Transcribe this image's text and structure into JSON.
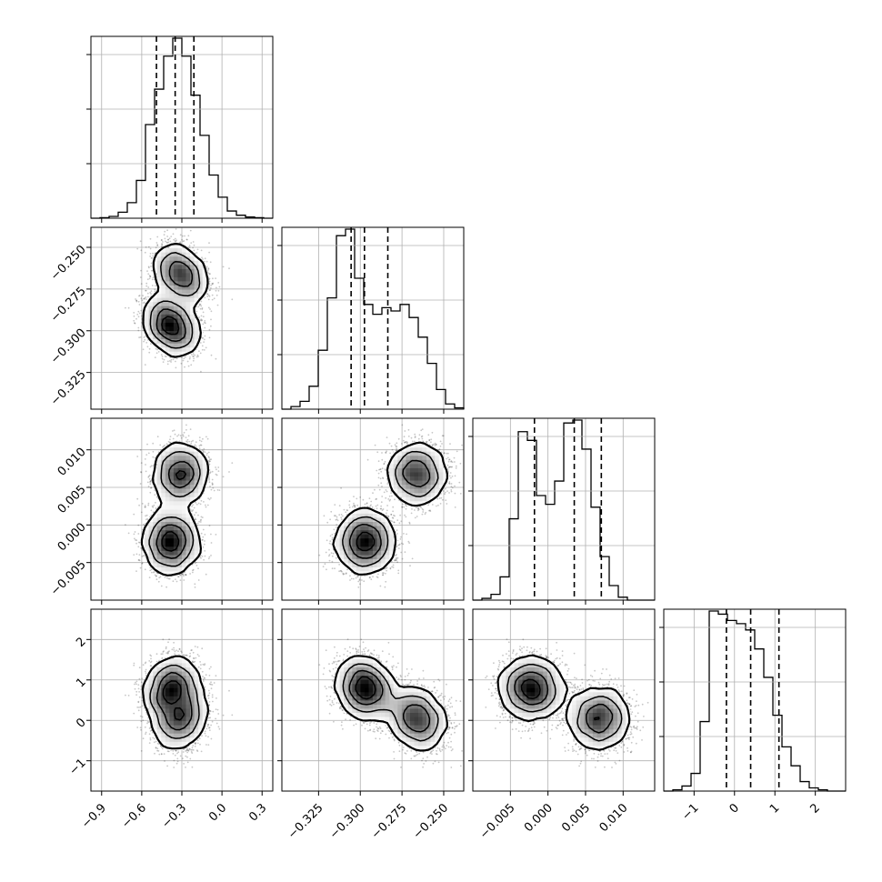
{
  "chart_data": {
    "type": "corner",
    "title": "",
    "parameters": [
      {
        "label": "",
        "range": [
          -0.98,
          0.38
        ],
        "ticks": [
          "-0.9",
          "-0.6",
          "-0.3",
          "0.0",
          "0.3"
        ],
        "tick_values": [
          -0.9,
          -0.6,
          -0.3,
          0.0,
          0.3
        ],
        "quantiles": [
          -0.49,
          -0.35,
          -0.21
        ]
      },
      {
        "label": "",
        "range": [
          -0.347,
          -0.238
        ],
        "ticks": [
          "-0.325",
          "-0.300",
          "-0.275",
          "-0.250"
        ],
        "tick_values": [
          -0.325,
          -0.3,
          -0.275,
          -0.25
        ],
        "quantiles": [
          -0.3055,
          -0.2975,
          -0.2835
        ]
      },
      {
        "label": "",
        "range": [
          -0.01,
          0.0142
        ],
        "ticks": [
          "-0.005",
          "0.000",
          "0.005",
          "0.010"
        ],
        "tick_values": [
          -0.005,
          0.0,
          0.005,
          0.01
        ],
        "quantiles": [
          -0.0018,
          0.0035,
          0.0071
        ]
      },
      {
        "label": "",
        "range": [
          -1.75,
          2.75
        ],
        "ticks": [
          "-1",
          "0",
          "1",
          "2"
        ],
        "tick_values": [
          -1,
          0,
          1,
          2
        ],
        "quantiles": [
          -0.2,
          0.4,
          1.1
        ]
      }
    ],
    "histograms": [
      {
        "edges": [
          -0.98,
          0.38
        ],
        "counts": [
          0,
          1,
          3,
          10,
          26,
          63,
          156,
          215,
          270,
          300,
          270,
          205,
          138,
          72,
          35,
          12,
          5,
          2,
          1,
          0
        ]
      },
      {
        "edges": [
          -0.347,
          -0.238
        ],
        "counts": [
          0,
          4,
          12,
          35,
          90,
          170,
          265,
          275,
          200,
          160,
          145,
          155,
          150,
          160,
          140,
          110,
          70,
          30,
          8,
          2
        ]
      },
      {
        "edges": [
          -0.01,
          0.0142
        ],
        "counts": [
          0,
          3,
          10,
          40,
          140,
          290,
          275,
          180,
          165,
          205,
          305,
          310,
          260,
          160,
          75,
          25,
          5,
          0,
          0,
          0
        ]
      },
      {
        "edges": [
          -1.75,
          2.75
        ],
        "counts": [
          0,
          2,
          8,
          28,
          110,
          285,
          280,
          270,
          265,
          255,
          225,
          180,
          120,
          70,
          40,
          15,
          5,
          2,
          0,
          0
        ]
      }
    ],
    "modes": [
      [
        -0.38,
        -0.297,
        -0.0022,
        0.8,
        0.55
      ],
      [
        -0.31,
        -0.266,
        0.0068,
        0.05,
        0.45
      ]
    ],
    "grid": true,
    "plot_density": true,
    "plot_contours": true
  }
}
